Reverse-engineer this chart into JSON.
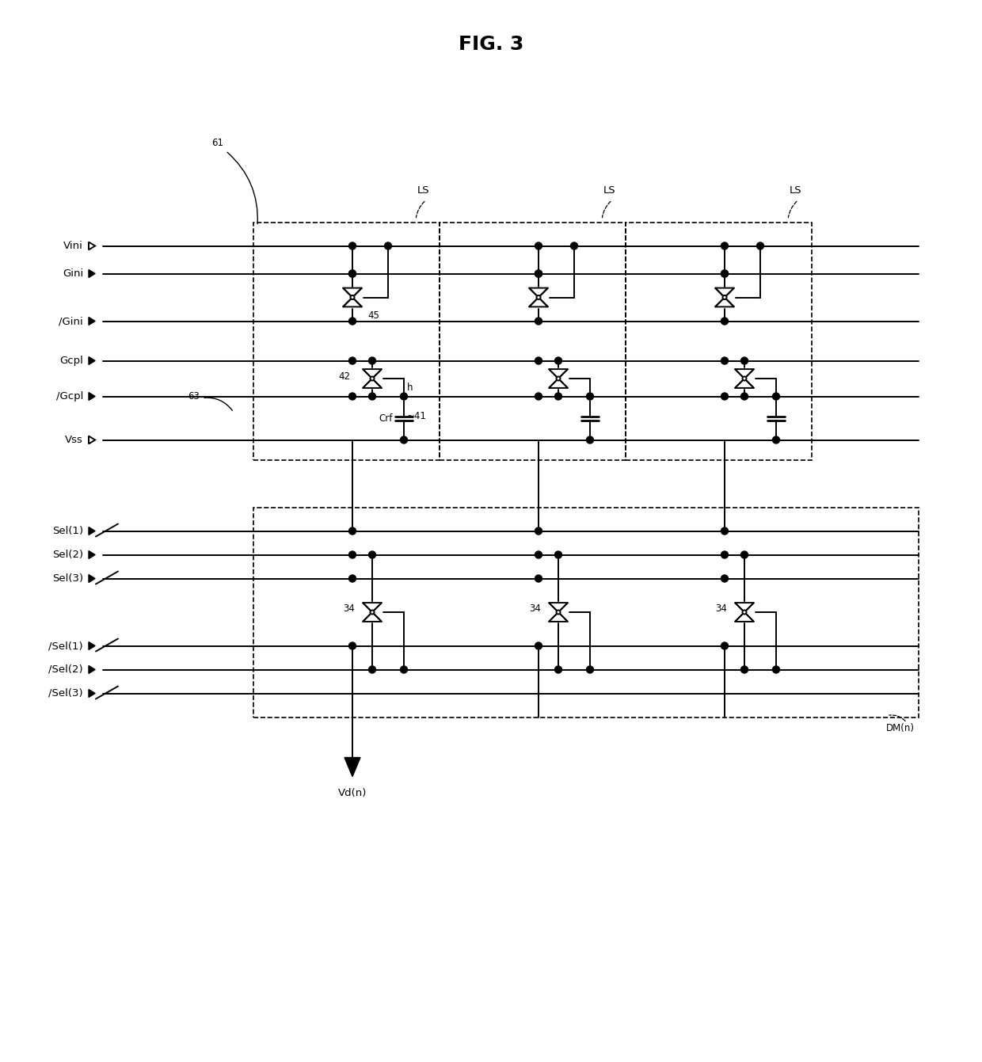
{
  "title": "FIG. 3",
  "background": "#ffffff",
  "fig_width": 12.4,
  "fig_height": 13.41,
  "ls_label": "LS",
  "dm_label": "DM(n)",
  "vd_label": "Vd(n)",
  "crf_label": "Crf",
  "h_label": "h",
  "ref_61": "61",
  "ref_63": "63",
  "ref_45": "45",
  "ref_42": "42",
  "ref_41": "41",
  "ref_34": "34",
  "sig_vini": "Vini",
  "sig_gini": "Gini",
  "sig_gini_n": "/Gini",
  "sig_gcpl": "Gcpl",
  "sig_gcpl_n": "/Gcpl",
  "sig_vss": "Vss",
  "sel_labels": [
    "Sel(1)",
    "Sel(2)",
    "Sel(3)",
    "/Sel(1)",
    "/Sel(2)",
    "/Sel(3)"
  ]
}
